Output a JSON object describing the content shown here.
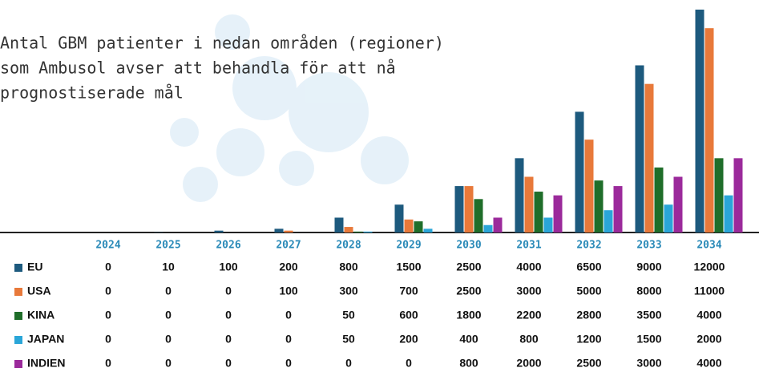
{
  "chart_data": {
    "type": "bar",
    "title": [
      "Antal GBM patienter i nedan områden (regioner)",
      "som Ambusol avser att behandla för att nå",
      "prognostiserade mål"
    ],
    "categories": [
      "2024",
      "2025",
      "2026",
      "2027",
      "2028",
      "2029",
      "2030",
      "2031",
      "2032",
      "2033",
      "2034"
    ],
    "series": [
      {
        "name": "EU",
        "color": "#1d5a7e",
        "values": [
          0,
          10,
          100,
          200,
          800,
          1500,
          2500,
          4000,
          6500,
          9000,
          12000
        ]
      },
      {
        "name": "USA",
        "color": "#e8793a",
        "values": [
          0,
          0,
          0,
          100,
          300,
          700,
          2500,
          3000,
          5000,
          8000,
          11000
        ]
      },
      {
        "name": "KINA",
        "color": "#1f6e2a",
        "values": [
          0,
          0,
          0,
          0,
          50,
          600,
          1800,
          2200,
          2800,
          3500,
          4000
        ]
      },
      {
        "name": "JAPAN",
        "color": "#2aa6d8",
        "values": [
          0,
          0,
          0,
          0,
          50,
          200,
          400,
          800,
          1200,
          1500,
          2000
        ]
      },
      {
        "name": "INDIEN",
        "color": "#9b2a9b",
        "values": [
          0,
          0,
          0,
          0,
          0,
          0,
          800,
          2000,
          2500,
          3000,
          4000
        ]
      }
    ],
    "ylim": [
      0,
      12000
    ]
  }
}
